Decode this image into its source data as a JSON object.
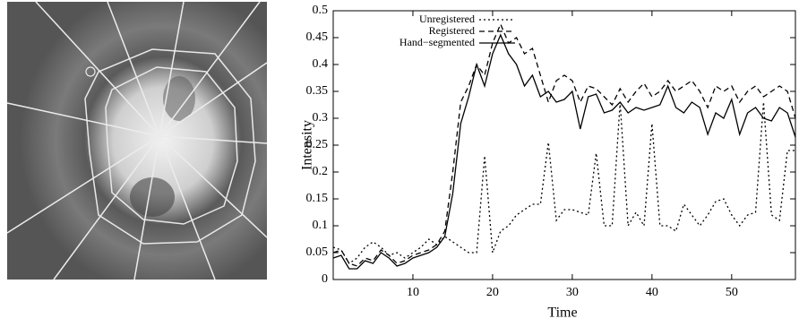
{
  "chart_data": {
    "type": "line",
    "x_label": "Time",
    "y_label": "Intensity",
    "xlim": [
      0,
      58
    ],
    "ylim": [
      0,
      0.5
    ],
    "xticks": [
      10,
      20,
      30,
      40,
      50
    ],
    "yticks": [
      0,
      0.05,
      0.1,
      0.15,
      0.2,
      0.25,
      0.3,
      0.35,
      0.4,
      0.45,
      0.5
    ],
    "x": [
      0,
      1,
      2,
      3,
      4,
      5,
      6,
      7,
      8,
      9,
      10,
      11,
      12,
      13,
      14,
      15,
      16,
      17,
      18,
      19,
      20,
      21,
      22,
      23,
      24,
      25,
      26,
      27,
      28,
      29,
      30,
      31,
      32,
      33,
      34,
      35,
      36,
      37,
      38,
      39,
      40,
      41,
      42,
      43,
      44,
      45,
      46,
      47,
      48,
      49,
      50,
      51,
      52,
      53,
      54,
      55,
      56,
      57,
      58
    ],
    "series": [
      {
        "name": "Unregistered",
        "color": "#000000",
        "line_style": "dotted",
        "values": [
          0.06,
          0.055,
          0.03,
          0.04,
          0.06,
          0.07,
          0.06,
          0.045,
          0.05,
          0.04,
          0.05,
          0.06,
          0.075,
          0.065,
          0.08,
          0.07,
          0.06,
          0.05,
          0.05,
          0.23,
          0.05,
          0.09,
          0.1,
          0.12,
          0.13,
          0.14,
          0.14,
          0.255,
          0.11,
          0.13,
          0.13,
          0.125,
          0.12,
          0.235,
          0.1,
          0.1,
          0.33,
          0.1,
          0.125,
          0.1,
          0.29,
          0.1,
          0.1,
          0.09,
          0.14,
          0.12,
          0.1,
          0.12,
          0.145,
          0.15,
          0.12,
          0.1,
          0.12,
          0.125,
          0.33,
          0.12,
          0.11,
          0.24,
          0.24
        ]
      },
      {
        "name": "Registered",
        "color": "#000000",
        "line_style": "dashed",
        "values": [
          0.05,
          0.055,
          0.03,
          0.025,
          0.04,
          0.035,
          0.055,
          0.045,
          0.03,
          0.035,
          0.045,
          0.05,
          0.055,
          0.065,
          0.09,
          0.2,
          0.33,
          0.36,
          0.4,
          0.38,
          0.44,
          0.475,
          0.44,
          0.45,
          0.42,
          0.43,
          0.38,
          0.33,
          0.37,
          0.38,
          0.37,
          0.33,
          0.36,
          0.355,
          0.34,
          0.325,
          0.355,
          0.33,
          0.35,
          0.365,
          0.34,
          0.35,
          0.37,
          0.35,
          0.36,
          0.37,
          0.35,
          0.32,
          0.36,
          0.35,
          0.36,
          0.33,
          0.35,
          0.36,
          0.34,
          0.35,
          0.36,
          0.35,
          0.3
        ]
      },
      {
        "name": "Hand−segmented",
        "color": "#000000",
        "line_style": "solid",
        "values": [
          0.04,
          0.045,
          0.02,
          0.02,
          0.035,
          0.03,
          0.05,
          0.04,
          0.025,
          0.03,
          0.04,
          0.045,
          0.05,
          0.06,
          0.08,
          0.16,
          0.29,
          0.34,
          0.4,
          0.36,
          0.42,
          0.455,
          0.42,
          0.4,
          0.36,
          0.38,
          0.34,
          0.35,
          0.33,
          0.335,
          0.35,
          0.28,
          0.34,
          0.345,
          0.31,
          0.315,
          0.33,
          0.31,
          0.32,
          0.315,
          0.32,
          0.325,
          0.36,
          0.32,
          0.31,
          0.33,
          0.32,
          0.27,
          0.31,
          0.3,
          0.335,
          0.27,
          0.31,
          0.32,
          0.3,
          0.295,
          0.32,
          0.31,
          0.265
        ]
      }
    ]
  }
}
